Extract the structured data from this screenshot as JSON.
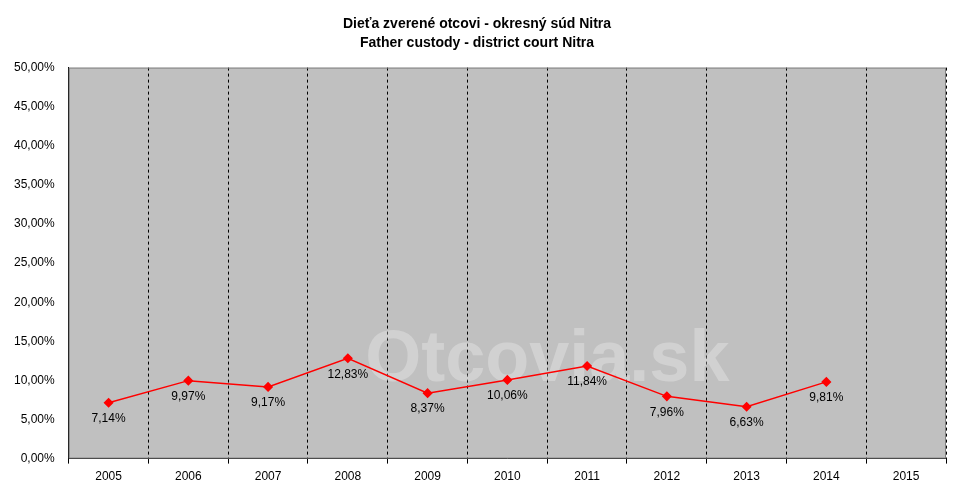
{
  "chart_data": {
    "type": "line",
    "title": "Dieťa zverené otcovi - okresný súd Nitra",
    "subtitle": "Father custody - district court Nitra",
    "annotations": [
      "Otcovia.sk"
    ],
    "categories": [
      "2005",
      "2006",
      "2007",
      "2008",
      "2009",
      "2010",
      "2011",
      "2012",
      "2013",
      "2014",
      "2015"
    ],
    "values": [
      7.14,
      9.97,
      9.17,
      12.83,
      8.37,
      10.06,
      11.84,
      7.96,
      6.63,
      9.81,
      null
    ],
    "value_labels": [
      "7,14%",
      "9,97%",
      "9,17%",
      "12,83%",
      "8,37%",
      "10,06%",
      "11,84%",
      "7,96%",
      "6,63%",
      "9,81%",
      null
    ],
    "color": "#ff0000",
    "marker": "diamond",
    "line_style": "solid",
    "data_labels": true,
    "grid": true,
    "ylim": [
      0,
      50
    ],
    "yticks": [
      {
        "value": 0,
        "label": "0,00%"
      },
      {
        "value": 5,
        "label": "5,00%"
      },
      {
        "value": 10,
        "label": "10,00%"
      },
      {
        "value": 15,
        "label": "15,00%"
      },
      {
        "value": 20,
        "label": "20,00%"
      },
      {
        "value": 25,
        "label": "25,00%"
      },
      {
        "value": 30,
        "label": "30,00%"
      },
      {
        "value": 35,
        "label": "35,00%"
      },
      {
        "value": 40,
        "label": "40,00%"
      },
      {
        "value": 45,
        "label": "45,00%"
      },
      {
        "value": 50,
        "label": "50,00%"
      }
    ]
  }
}
